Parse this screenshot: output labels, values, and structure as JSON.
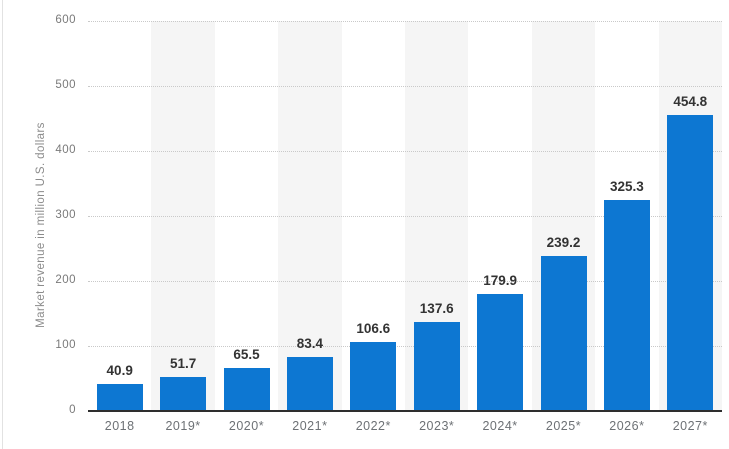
{
  "chart_data": {
    "type": "bar",
    "title": "",
    "xlabel": "",
    "ylabel": "Market revenue in million U.S. dollars",
    "categories": [
      "2018",
      "2019*",
      "2020*",
      "2021*",
      "2022*",
      "2023*",
      "2024*",
      "2025*",
      "2026*",
      "2027*"
    ],
    "values": [
      40.9,
      51.7,
      65.5,
      83.4,
      106.6,
      137.6,
      179.9,
      239.2,
      325.3,
      454.8
    ],
    "ylim": [
      0,
      600
    ],
    "yticks": [
      0,
      100,
      200,
      300,
      400,
      500,
      600
    ],
    "grid": "horizontal-dotted",
    "legend_position": "none",
    "bar_color": "#0d77d2",
    "value_label_color": "#333333",
    "stripe_color": "#f5f5f5",
    "gridline_color": "#c9c9c9",
    "axis_line_color": "#2e2e2e",
    "tick_label_color": "#7a7a7a"
  }
}
